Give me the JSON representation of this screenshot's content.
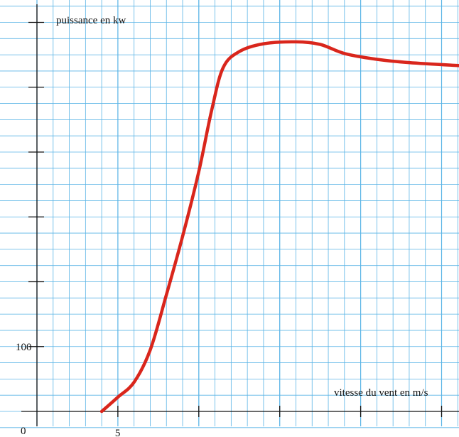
{
  "chart_data": {
    "type": "line",
    "title": "",
    "ylabel": "puissance en kw",
    "xlabel": "vitesse du vent en m/s",
    "origin_label": "0",
    "x_tick_labels": [
      {
        "x": 5,
        "label": "5"
      }
    ],
    "y_tick_labels": [
      {
        "y": 100,
        "label": "100"
      }
    ],
    "x_ticks": [
      5,
      10,
      15,
      20,
      25
    ],
    "y_ticks": [
      100,
      200,
      300,
      400,
      500,
      600
    ],
    "xlim": [
      0,
      26.5
    ],
    "ylim": [
      0,
      640
    ],
    "grid": true,
    "colors": {
      "grid": "#5ab4e6",
      "curve": "#d9261c",
      "axis": "#111111"
    },
    "series": [
      {
        "values": [
          {
            "x": 4.0,
            "y": 0
          },
          {
            "x": 5.0,
            "y": 22
          },
          {
            "x": 6.0,
            "y": 45
          },
          {
            "x": 7.0,
            "y": 95
          },
          {
            "x": 8.0,
            "y": 180
          },
          {
            "x": 9.0,
            "y": 270
          },
          {
            "x": 10.0,
            "y": 370
          },
          {
            "x": 10.8,
            "y": 465
          },
          {
            "x": 11.5,
            "y": 530
          },
          {
            "x": 12.5,
            "y": 555
          },
          {
            "x": 14.0,
            "y": 567
          },
          {
            "x": 16.0,
            "y": 570
          },
          {
            "x": 17.5,
            "y": 566
          },
          {
            "x": 19.0,
            "y": 552
          },
          {
            "x": 21.0,
            "y": 543
          },
          {
            "x": 23.0,
            "y": 538
          },
          {
            "x": 26.3,
            "y": 533
          }
        ]
      }
    ]
  }
}
